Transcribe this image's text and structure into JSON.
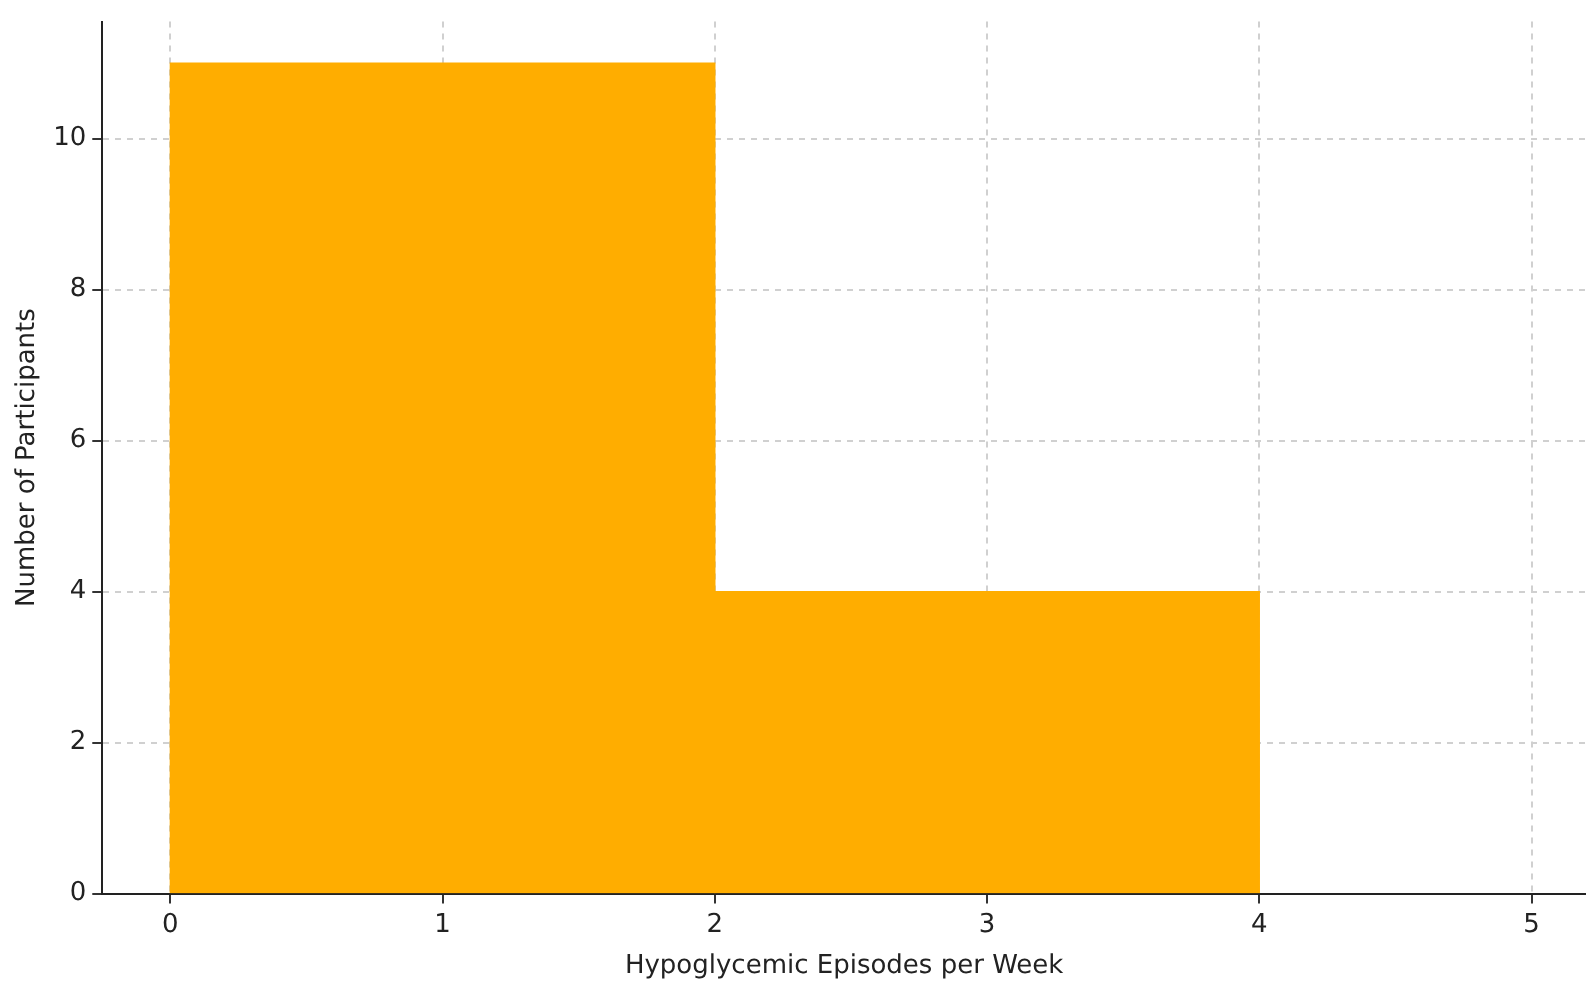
{
  "chart_data": {
    "type": "histogram",
    "xlabel": "Hypoglycemic Episodes per Week",
    "ylabel": "Number of Participants",
    "bins": [
      0,
      2,
      4
    ],
    "values": [
      11,
      4
    ],
    "color": "#ffad00",
    "xlim": [
      -0.25,
      5.2
    ],
    "xticks": [
      0,
      1,
      2,
      3,
      4,
      5
    ],
    "ylim": [
      0,
      11.55
    ],
    "yticks": [
      0,
      2,
      4,
      6,
      8,
      10
    ],
    "grid": true
  }
}
